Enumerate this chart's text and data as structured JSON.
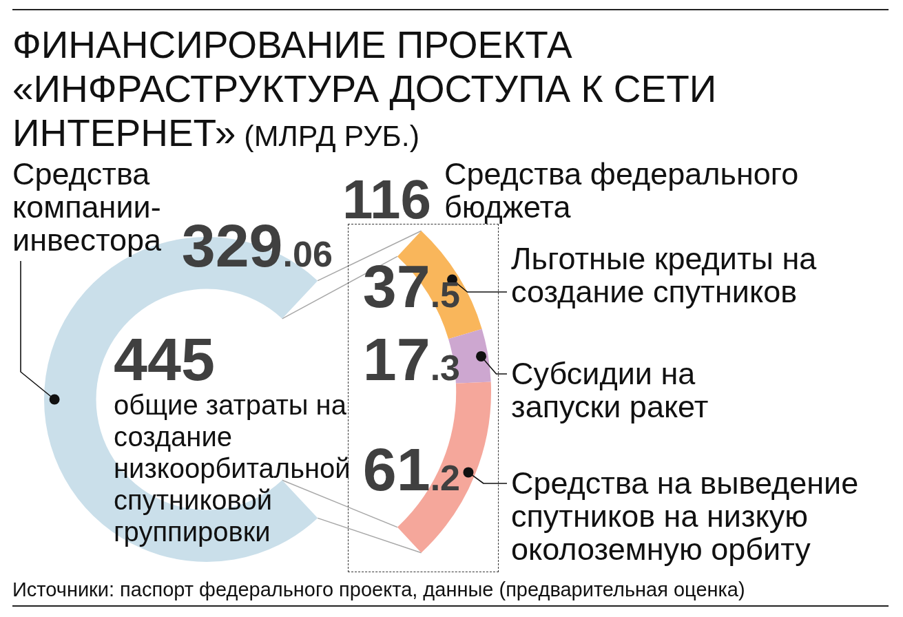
{
  "chart_data": {
    "type": "donut",
    "title": "ФИНАНСИРОВАНИЕ ПРОЕКТА «ИНФРАСТРУКТУРА ДОСТУПА К СЕТИ ИНТЕРНЕТ» (МЛРД РУБ.)",
    "categories": [
      "Средства компании-инвестора",
      "Льготные кредиты на создание спутников",
      "Субсидии на запуски ракет",
      "Средства на выведение спутников на низкую околоземную орбиту"
    ],
    "values": [
      329.06,
      37.5,
      17.3,
      61.2
    ],
    "colors": [
      "#cadfea",
      "#f9b65b",
      "#cda7d0",
      "#f5a79b"
    ],
    "data_labels": true,
    "annotations": [
      "116",
      "Средства федерального бюджета",
      "445",
      "общие затраты на создание низкоорбитальной спутниковой группировки",
      "Источники: паспорт федерального проекта, данные (предварительная оценка)"
    ]
  }
}
